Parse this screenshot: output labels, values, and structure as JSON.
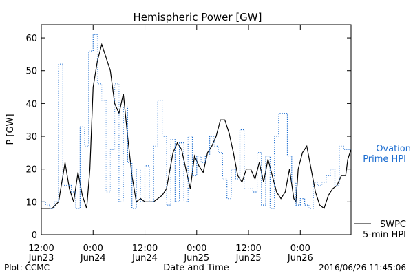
{
  "chart_data": {
    "type": "line",
    "title": "Hemispheric Power [GW]",
    "xlabel": "Date and Time",
    "ylabel": "P [GW]",
    "ylim": [
      0,
      64
    ],
    "yticks": [
      0,
      10,
      20,
      30,
      40,
      50,
      60
    ],
    "xlim": [
      "2016-06-23 12:00",
      "2016-06-26 11:45"
    ],
    "xticks": [
      {
        "t": "2016-06-23 12:00",
        "top": "12:00",
        "bottom": "Jun23"
      },
      {
        "t": "2016-06-24 00:00",
        "top": "0:00",
        "bottom": "Jun24"
      },
      {
        "t": "2016-06-24 12:00",
        "top": "12:00",
        "bottom": "Jun24"
      },
      {
        "t": "2016-06-25 00:00",
        "top": "0:00",
        "bottom": "Jun25"
      },
      {
        "t": "2016-06-25 12:00",
        "top": "12:00",
        "bottom": "Jun25"
      },
      {
        "t": "2016-06-26 00:00",
        "top": "0:00",
        "bottom": "Jun26"
      }
    ],
    "legend_position": "right",
    "grid": false,
    "footer_left": "Plot: CCMC",
    "footer_right": "2016/06/26 11:45:06",
    "series": [
      {
        "name": "SWPC 5-min HPI",
        "legend_lines": [
          "SWPC",
          "5-min HPI"
        ],
        "style": "solid",
        "color": "#000000",
        "points": [
          [
            "2016-06-23 12:00",
            8
          ],
          [
            "2016-06-23 14:30",
            8
          ],
          [
            "2016-06-23 16:00",
            10
          ],
          [
            "2016-06-23 17:00",
            18
          ],
          [
            "2016-06-23 17:30",
            22
          ],
          [
            "2016-06-23 18:30",
            14
          ],
          [
            "2016-06-23 19:30",
            10
          ],
          [
            "2016-06-23 20:30",
            19
          ],
          [
            "2016-06-23 21:30",
            12
          ],
          [
            "2016-06-23 22:30",
            8
          ],
          [
            "2016-06-23 23:15",
            20
          ],
          [
            "2016-06-24 00:00",
            45
          ],
          [
            "2016-06-24 01:00",
            53
          ],
          [
            "2016-06-24 02:00",
            58
          ],
          [
            "2016-06-24 03:00",
            54
          ],
          [
            "2016-06-24 04:00",
            50
          ],
          [
            "2016-06-24 05:00",
            40
          ],
          [
            "2016-06-24 06:00",
            37
          ],
          [
            "2016-06-24 07:00",
            43
          ],
          [
            "2016-06-24 08:00",
            30
          ],
          [
            "2016-06-24 09:00",
            18
          ],
          [
            "2016-06-24 10:00",
            10
          ],
          [
            "2016-06-24 11:00",
            11
          ],
          [
            "2016-06-24 12:00",
            10
          ],
          [
            "2016-06-24 14:00",
            10
          ],
          [
            "2016-06-24 16:00",
            12
          ],
          [
            "2016-06-24 17:00",
            14
          ],
          [
            "2016-06-24 18:30",
            25
          ],
          [
            "2016-06-24 19:30",
            28
          ],
          [
            "2016-06-24 20:30",
            26
          ],
          [
            "2016-06-24 21:30",
            20
          ],
          [
            "2016-06-24 22:30",
            14
          ],
          [
            "2016-06-24 23:30",
            24
          ],
          [
            "2016-06-25 00:30",
            21
          ],
          [
            "2016-06-25 01:30",
            19
          ],
          [
            "2016-06-25 02:30",
            25
          ],
          [
            "2016-06-25 03:30",
            27
          ],
          [
            "2016-06-25 04:30",
            30
          ],
          [
            "2016-06-25 05:30",
            35
          ],
          [
            "2016-06-25 06:30",
            35
          ],
          [
            "2016-06-25 07:30",
            31
          ],
          [
            "2016-06-25 08:30",
            25
          ],
          [
            "2016-06-25 09:30",
            18
          ],
          [
            "2016-06-25 10:30",
            16
          ],
          [
            "2016-06-25 11:30",
            20
          ],
          [
            "2016-06-25 12:30",
            20
          ],
          [
            "2016-06-25 13:30",
            17
          ],
          [
            "2016-06-25 14:30",
            22
          ],
          [
            "2016-06-25 15:30",
            16
          ],
          [
            "2016-06-25 16:30",
            23
          ],
          [
            "2016-06-25 17:30",
            18
          ],
          [
            "2016-06-25 18:30",
            13
          ],
          [
            "2016-06-25 19:30",
            11
          ],
          [
            "2016-06-25 20:30",
            13
          ],
          [
            "2016-06-25 21:30",
            20
          ],
          [
            "2016-06-25 22:30",
            11
          ],
          [
            "2016-06-25 23:00",
            10
          ],
          [
            "2016-06-25 23:30",
            20
          ],
          [
            "2016-06-26 00:30",
            25
          ],
          [
            "2016-06-26 01:30",
            27
          ],
          [
            "2016-06-26 02:30",
            20
          ],
          [
            "2016-06-26 03:30",
            13
          ],
          [
            "2016-06-26 04:30",
            9
          ],
          [
            "2016-06-26 05:30",
            8
          ],
          [
            "2016-06-26 06:30",
            12
          ],
          [
            "2016-06-26 07:30",
            14
          ],
          [
            "2016-06-26 08:30",
            15
          ],
          [
            "2016-06-26 09:30",
            18
          ],
          [
            "2016-06-26 10:30",
            18
          ],
          [
            "2016-06-26 11:00",
            23
          ],
          [
            "2016-06-26 11:45",
            26
          ]
        ]
      },
      {
        "name": "Ovation Prime HPI",
        "legend_lines": [
          "— Ovation",
          "Prime HPI"
        ],
        "style": "dotted-step",
        "color": "#1c6dd0",
        "points": [
          [
            "2016-06-23 12:00",
            10
          ],
          [
            "2016-06-23 13:00",
            9
          ],
          [
            "2016-06-23 14:00",
            8
          ],
          [
            "2016-06-23 15:00",
            10
          ],
          [
            "2016-06-23 16:00",
            52
          ],
          [
            "2016-06-23 17:00",
            15
          ],
          [
            "2016-06-23 18:00",
            15
          ],
          [
            "2016-06-23 19:00",
            13
          ],
          [
            "2016-06-23 20:00",
            8
          ],
          [
            "2016-06-23 21:00",
            33
          ],
          [
            "2016-06-23 22:00",
            27
          ],
          [
            "2016-06-23 23:00",
            56
          ],
          [
            "2016-06-24 00:00",
            61
          ],
          [
            "2016-06-24 01:00",
            46
          ],
          [
            "2016-06-24 02:00",
            41
          ],
          [
            "2016-06-24 03:00",
            13
          ],
          [
            "2016-06-24 04:00",
            26
          ],
          [
            "2016-06-24 05:00",
            46
          ],
          [
            "2016-06-24 06:00",
            10
          ],
          [
            "2016-06-24 07:00",
            39
          ],
          [
            "2016-06-24 08:00",
            22
          ],
          [
            "2016-06-24 09:00",
            8
          ],
          [
            "2016-06-24 10:00",
            20
          ],
          [
            "2016-06-24 11:00",
            10
          ],
          [
            "2016-06-24 12:00",
            21
          ],
          [
            "2016-06-24 13:00",
            10
          ],
          [
            "2016-06-24 14:00",
            27
          ],
          [
            "2016-06-24 15:00",
            41
          ],
          [
            "2016-06-24 16:00",
            30
          ],
          [
            "2016-06-24 17:00",
            9
          ],
          [
            "2016-06-24 18:00",
            29
          ],
          [
            "2016-06-24 19:00",
            10
          ],
          [
            "2016-06-24 20:00",
            28
          ],
          [
            "2016-06-24 21:00",
            10
          ],
          [
            "2016-06-24 22:00",
            30
          ],
          [
            "2016-06-24 23:00",
            18
          ],
          [
            "2016-06-25 00:00",
            24
          ],
          [
            "2016-06-25 01:00",
            22
          ],
          [
            "2016-06-25 02:00",
            24
          ],
          [
            "2016-06-25 03:00",
            30
          ],
          [
            "2016-06-25 04:00",
            27
          ],
          [
            "2016-06-25 05:00",
            25
          ],
          [
            "2016-06-25 06:00",
            17
          ],
          [
            "2016-06-25 07:00",
            11
          ],
          [
            "2016-06-25 08:00",
            20
          ],
          [
            "2016-06-25 09:00",
            17
          ],
          [
            "2016-06-25 10:00",
            32
          ],
          [
            "2016-06-25 11:00",
            14
          ],
          [
            "2016-06-25 12:00",
            14
          ],
          [
            "2016-06-25 13:00",
            13
          ],
          [
            "2016-06-25 14:00",
            25
          ],
          [
            "2016-06-25 15:00",
            9
          ],
          [
            "2016-06-25 16:00",
            24
          ],
          [
            "2016-06-25 17:00",
            8
          ],
          [
            "2016-06-25 18:00",
            30
          ],
          [
            "2016-06-25 19:00",
            37
          ],
          [
            "2016-06-25 20:00",
            37
          ],
          [
            "2016-06-25 21:00",
            24
          ],
          [
            "2016-06-25 22:00",
            16
          ],
          [
            "2016-06-25 23:00",
            9
          ],
          [
            "2016-06-26 00:00",
            11
          ],
          [
            "2016-06-26 01:00",
            9
          ],
          [
            "2016-06-26 02:00",
            8
          ],
          [
            "2016-06-26 03:00",
            16
          ],
          [
            "2016-06-26 04:00",
            15
          ],
          [
            "2016-06-26 05:00",
            16
          ],
          [
            "2016-06-26 06:00",
            18
          ],
          [
            "2016-06-26 07:00",
            20
          ],
          [
            "2016-06-26 08:00",
            15
          ],
          [
            "2016-06-26 09:00",
            27
          ],
          [
            "2016-06-26 10:00",
            26
          ],
          [
            "2016-06-26 11:00",
            26
          ],
          [
            "2016-06-26 11:45",
            26
          ]
        ]
      }
    ]
  }
}
